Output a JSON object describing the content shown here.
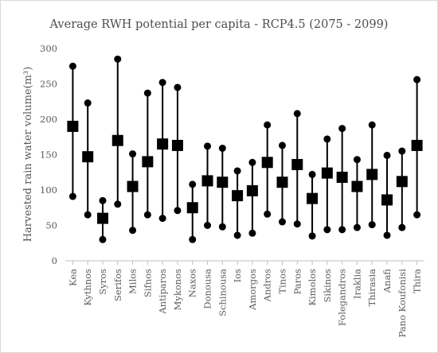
{
  "chart_data": {
    "type": "scatter",
    "title": "Average RWH potential per capita - RCP4.5 (2075 - 2099)",
    "ylabel": "Harvested rain water volume(m³)",
    "xlabel": "",
    "ylim": [
      0,
      300
    ],
    "yticks": [
      0,
      50,
      100,
      150,
      200,
      250,
      300
    ],
    "grid": false,
    "legend": "none",
    "categories": [
      "Kea",
      "Kythnos",
      "Syros",
      "Serifos",
      "Milos",
      "Sifnos",
      "Antiparos",
      "Mykonos",
      "Naxos",
      "Donousa",
      "Schinousa",
      "Ios",
      "Amorgos",
      "Andros",
      "Tinos",
      "Paros",
      "Kimolos",
      "Sikinos",
      "Folegandros",
      "Iraklia",
      "Thirasia",
      "Anafi",
      "Pano Koufonisi",
      "Thira"
    ],
    "series": [
      {
        "values": [
          275,
          223,
          85,
          285,
          151,
          237,
          252,
          245,
          108,
          162,
          159,
          127,
          139,
          192,
          163,
          208,
          122,
          172,
          187,
          143,
          192,
          149,
          155,
          256
        ]
      },
      {
        "values": [
          190,
          147,
          60,
          170,
          105,
          140,
          165,
          163,
          75,
          113,
          111,
          92,
          99,
          139,
          111,
          136,
          88,
          124,
          118,
          105,
          122,
          86,
          112,
          163
        ]
      },
      {
        "values": [
          91,
          65,
          30,
          80,
          43,
          65,
          60,
          71,
          30,
          50,
          48,
          36,
          39,
          66,
          55,
          52,
          35,
          44,
          44,
          47,
          51,
          36,
          47,
          65
        ]
      }
    ],
    "colors": {
      "marks": "#000000",
      "axis": "#bfbfbf",
      "text": "#595959"
    }
  }
}
